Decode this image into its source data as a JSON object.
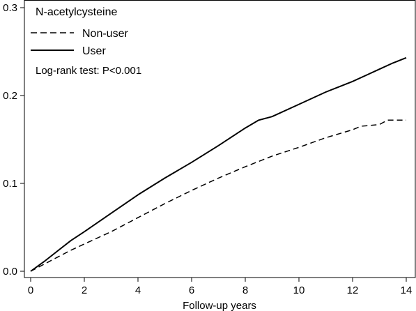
{
  "chart_data": {
    "type": "line",
    "title": "",
    "xlabel": "Follow-up years",
    "ylabel": "",
    "xlim": [
      0,
      14
    ],
    "ylim": [
      0,
      0.3
    ],
    "x_ticks": [
      0,
      2,
      4,
      6,
      8,
      10,
      12,
      14
    ],
    "x_tick_labels": [
      "0",
      "2",
      "4",
      "6",
      "8",
      "10",
      "12",
      "14"
    ],
    "y_ticks": [
      0.0,
      0.1,
      0.2,
      0.3
    ],
    "y_tick_labels": [
      "0.0",
      "0.1",
      "0.2",
      "0.3"
    ],
    "grid": false,
    "legend": {
      "title": "N-acetylcysteine",
      "placement": "top-left",
      "entries": [
        {
          "label": "Non-user",
          "style": "dashed"
        },
        {
          "label": "User",
          "style": "solid"
        }
      ]
    },
    "annotation": "Log-rank test: P<0.001",
    "series": [
      {
        "name": "Non-user",
        "style": "dashed",
        "color": "#000000",
        "points": [
          [
            0,
            0
          ],
          [
            0.5,
            0.008
          ],
          [
            1,
            0.016
          ],
          [
            1.5,
            0.024
          ],
          [
            2,
            0.031
          ],
          [
            3,
            0.045
          ],
          [
            4,
            0.061
          ],
          [
            5,
            0.077
          ],
          [
            6,
            0.092
          ],
          [
            7,
            0.106
          ],
          [
            8,
            0.119
          ],
          [
            9,
            0.131
          ],
          [
            10,
            0.141
          ],
          [
            11,
            0.152
          ],
          [
            12,
            0.161
          ],
          [
            12.3,
            0.165
          ],
          [
            13,
            0.167
          ],
          [
            13.3,
            0.172
          ],
          [
            13.9,
            0.172
          ],
          [
            14,
            0.172
          ]
        ]
      },
      {
        "name": "User",
        "style": "solid",
        "color": "#000000",
        "points": [
          [
            0,
            0
          ],
          [
            0.5,
            0.011
          ],
          [
            1,
            0.023
          ],
          [
            1.5,
            0.035
          ],
          [
            2,
            0.045
          ],
          [
            3,
            0.066
          ],
          [
            4,
            0.087
          ],
          [
            5,
            0.106
          ],
          [
            6,
            0.124
          ],
          [
            7,
            0.143
          ],
          [
            8,
            0.163
          ],
          [
            8.5,
            0.172
          ],
          [
            9,
            0.176
          ],
          [
            10,
            0.19
          ],
          [
            11,
            0.204
          ],
          [
            12,
            0.216
          ],
          [
            12.5,
            0.223
          ],
          [
            13,
            0.23
          ],
          [
            13.5,
            0.237
          ],
          [
            14,
            0.243
          ]
        ]
      }
    ]
  }
}
